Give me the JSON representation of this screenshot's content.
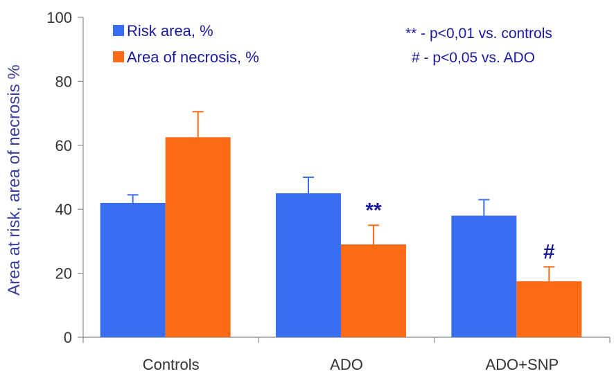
{
  "chart_data": {
    "type": "bar",
    "title": "",
    "xlabel": "",
    "ylabel": "Area at risk, area of necrosis %",
    "ylim": [
      0,
      100
    ],
    "yticks": [
      "0",
      "20",
      "40",
      "60",
      "80",
      "100"
    ],
    "categories": [
      "Controls",
      "ADO",
      "ADO+SNP"
    ],
    "series": [
      {
        "name": "Risk area, %",
        "color": "#3a6ef0",
        "values": [
          42,
          45,
          38
        ],
        "errors": [
          2.5,
          5,
          5
        ]
      },
      {
        "name": "Area of necrosis, %",
        "color": "#ff6a14",
        "values": [
          62.5,
          29,
          17.5
        ],
        "errors": [
          8,
          6,
          4.5
        ]
      }
    ],
    "significance": [
      "",
      "**",
      "#"
    ],
    "legend_position": "top-left",
    "notes": [
      "** - p<0,01 vs. controls",
      "# - p<0,05 vs. ADO"
    ],
    "grid": false
  }
}
